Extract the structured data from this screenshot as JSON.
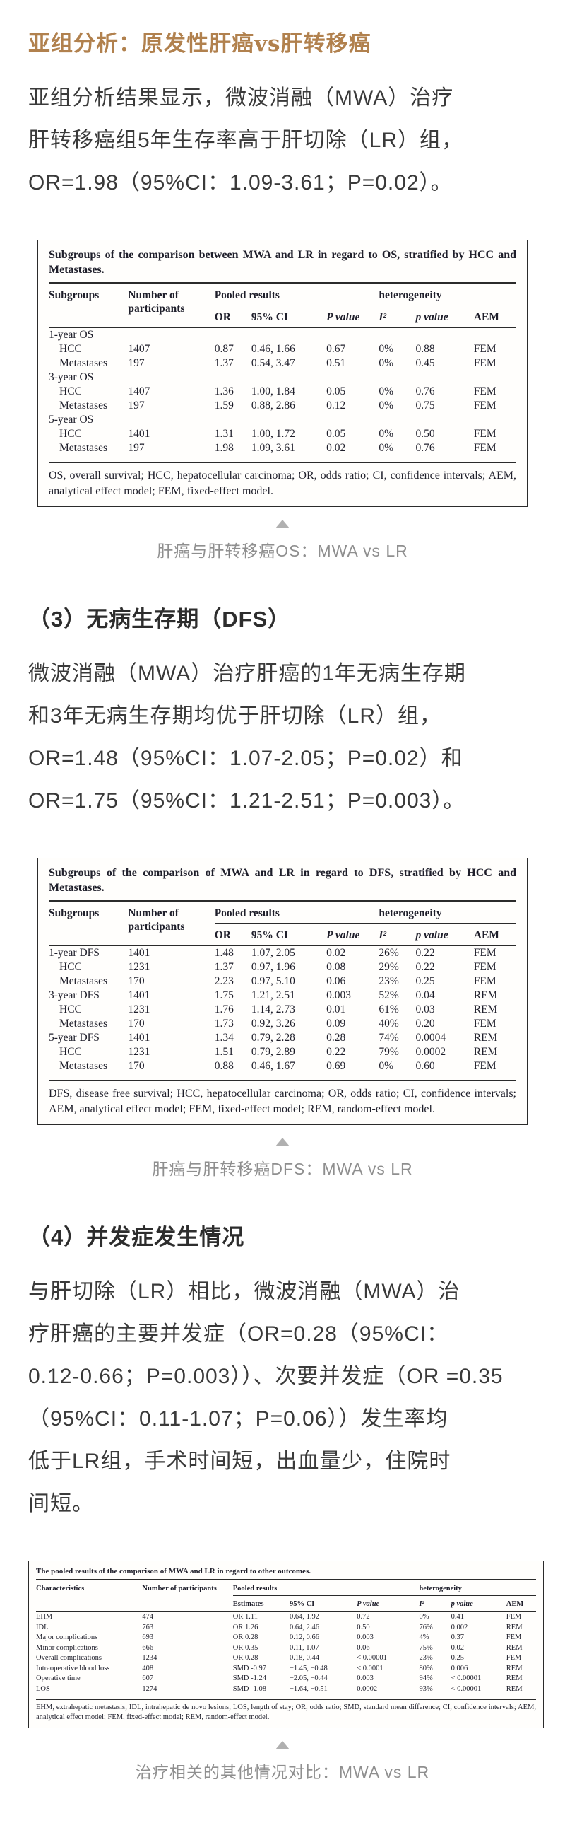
{
  "page": {
    "title": "亚组分析：原发性肝癌vs肝转移癌"
  },
  "colors": {
    "accent": "#b1814e",
    "body_text": "#3a3a3a",
    "caption_gray": "#8f8f8f",
    "table_ink": "#1f1f2b"
  },
  "os_section": {
    "paragraph_lines": [
      "亚组分析结果显示，微波消融（MWA）治疗",
      "肝转移癌组5年生存率高于肝切除（LR）组，",
      "OR=1.98（95%CI：1.09-3.61；P=0.02）。"
    ],
    "caption": "肝癌与肝转移癌OS：MWA vs LR"
  },
  "table_os": {
    "title": "Subgroups of the comparison between MWA and LR in regard to OS, stratified by HCC and Metastases.",
    "headers": {
      "col1": "Subgroups",
      "col2": "Number of participants",
      "pooled": "Pooled results",
      "heterogeneity": "heterogeneity",
      "sub": [
        "OR",
        "95% CI",
        "P value",
        "I²",
        "p value",
        "AEM"
      ]
    },
    "rows": [
      {
        "label": "1-year OS",
        "indent": 0,
        "cells": [
          "",
          "",
          "",
          "",
          "",
          "",
          ""
        ]
      },
      {
        "label": "HCC",
        "indent": 1,
        "cells": [
          "1407",
          "0.87",
          "0.46, 1.66",
          "0.67",
          "0%",
          "0.88",
          "FEM"
        ]
      },
      {
        "label": "Metastases",
        "indent": 1,
        "cells": [
          "197",
          "1.37",
          "0.54, 3.47",
          "0.51",
          "0%",
          "0.45",
          "FEM"
        ]
      },
      {
        "label": "3-year OS",
        "indent": 0,
        "cells": [
          "",
          "",
          "",
          "",
          "",
          "",
          ""
        ]
      },
      {
        "label": "HCC",
        "indent": 1,
        "cells": [
          "1407",
          "1.36",
          "1.00, 1.84",
          "0.05",
          "0%",
          "0.76",
          "FEM"
        ]
      },
      {
        "label": "Metastases",
        "indent": 1,
        "cells": [
          "197",
          "1.59",
          "0.88, 2.86",
          "0.12",
          "0%",
          "0.75",
          "FEM"
        ]
      },
      {
        "label": "5-year OS",
        "indent": 0,
        "cells": [
          "",
          "",
          "",
          "",
          "",
          "",
          ""
        ]
      },
      {
        "label": "HCC",
        "indent": 1,
        "cells": [
          "1401",
          "1.31",
          "1.00, 1.72",
          "0.05",
          "0%",
          "0.50",
          "FEM"
        ]
      },
      {
        "label": "Metastases",
        "indent": 1,
        "cells": [
          "197",
          "1.98",
          "1.09, 3.61",
          "0.02",
          "0%",
          "0.76",
          "FEM"
        ]
      }
    ],
    "footnote": "OS, overall survival; HCC, hepatocellular carcinoma; OR, odds ratio; CI, confidence intervals; AEM, analytical effect model; FEM, fixed-effect model."
  },
  "dfs_section": {
    "heading": "（3）无病生存期（DFS）",
    "paragraph_lines": [
      "微波消融（MWA）治疗肝癌的1年无病生存期",
      "和3年无病生存期均优于肝切除（LR）组，",
      "OR=1.48（95%CI：1.07-2.05；P=0.02）和",
      "OR=1.75（95%CI：1.21-2.51；P=0.003）。"
    ],
    "caption": "肝癌与肝转移癌DFS：MWA vs LR"
  },
  "table_dfs": {
    "title": "Subgroups of the comparison of MWA and LR in regard to DFS, stratified by HCC and Metastases.",
    "headers": {
      "col1": "Subgroups",
      "col2": "Number of participants",
      "pooled": "Pooled results",
      "heterogeneity": "heterogeneity",
      "sub": [
        "OR",
        "95% CI",
        "P value",
        "I²",
        "p value",
        "AEM"
      ]
    },
    "rows": [
      {
        "label": "1-year DFS",
        "indent": 0,
        "cells": [
          "1401",
          "1.48",
          "1.07, 2.05",
          "0.02",
          "26%",
          "0.22",
          "FEM"
        ]
      },
      {
        "label": "HCC",
        "indent": 1,
        "cells": [
          "1231",
          "1.37",
          "0.97, 1.96",
          "0.08",
          "29%",
          "0.22",
          "FEM"
        ]
      },
      {
        "label": "Metastases",
        "indent": 1,
        "cells": [
          "170",
          "2.23",
          "0.97, 5.10",
          "0.06",
          "23%",
          "0.25",
          "FEM"
        ]
      },
      {
        "label": "3-year DFS",
        "indent": 0,
        "cells": [
          "1401",
          "1.75",
          "1.21, 2.51",
          "0.003",
          "52%",
          "0.04",
          "REM"
        ]
      },
      {
        "label": "HCC",
        "indent": 1,
        "cells": [
          "1231",
          "1.76",
          "1.14, 2.73",
          "0.01",
          "61%",
          "0.03",
          "REM"
        ]
      },
      {
        "label": "Metastases",
        "indent": 1,
        "cells": [
          "170",
          "1.73",
          "0.92, 3.26",
          "0.09",
          "40%",
          "0.20",
          "FEM"
        ]
      },
      {
        "label": "5-year DFS",
        "indent": 0,
        "cells": [
          "1401",
          "1.34",
          "0.79, 2.28",
          "0.28",
          "74%",
          "0.0004",
          "REM"
        ]
      },
      {
        "label": "HCC",
        "indent": 1,
        "cells": [
          "1231",
          "1.51",
          "0.79, 2.89",
          "0.22",
          "79%",
          "0.0002",
          "REM"
        ]
      },
      {
        "label": "Metastases",
        "indent": 1,
        "cells": [
          "170",
          "0.88",
          "0.46, 1.67",
          "0.69",
          "0%",
          "0.60",
          "FEM"
        ]
      }
    ],
    "footnote": "DFS, disease free survival; HCC, hepatocellular carcinoma; OR, odds ratio; CI, confidence intervals; AEM, analytical effect model; FEM, fixed-effect model; REM, random-effect model."
  },
  "complications_section": {
    "heading": "（4）并发症发生情况",
    "paragraph_lines": [
      "与肝切除（LR）相比，微波消融（MWA）治",
      "疗肝癌的主要并发症（OR=0.28（95%CI：",
      "0.12-0.66；P=0.003））、次要并发症（OR =0.35",
      "（95%CI：0.11-1.07；P=0.06））发生率均",
      "低于LR组，手术时间短，出血量少，住院时",
      "间短。"
    ],
    "caption": "治疗相关的其他情况对比：MWA vs LR"
  },
  "table_outcomes": {
    "title": "The pooled results of the comparison of MWA and LR in regard to other outcomes.",
    "headers": {
      "col1": "Characteristics",
      "col2": "Number of participants",
      "pooled": "Pooled results",
      "heterogeneity": "heterogeneity",
      "sub": [
        "Estimates",
        "95% CI",
        "P value",
        "I²",
        "p value",
        "AEM"
      ]
    },
    "rows": [
      {
        "label": "EHM",
        "indent": 0,
        "cells": [
          "474",
          "OR 1.11",
          "0.64, 1.92",
          "0.72",
          "0%",
          "0.41",
          "FEM"
        ]
      },
      {
        "label": "IDL",
        "indent": 0,
        "cells": [
          "763",
          "OR 1.26",
          "0.64, 2.46",
          "0.50",
          "76%",
          "0.002",
          "REM"
        ]
      },
      {
        "label": "Major complications",
        "indent": 0,
        "cells": [
          "693",
          "OR 0.28",
          "0.12, 0.66",
          "0.003",
          "4%",
          "0.37",
          "FEM"
        ]
      },
      {
        "label": "Minor complications",
        "indent": 0,
        "cells": [
          "666",
          "OR 0.35",
          "0.11, 1.07",
          "0.06",
          "75%",
          "0.02",
          "REM"
        ]
      },
      {
        "label": "Overall complications",
        "indent": 0,
        "cells": [
          "1234",
          "OR 0.28",
          "0.18, 0.44",
          "< 0.00001",
          "23%",
          "0.25",
          "FEM"
        ]
      },
      {
        "label": "Intraoperative blood loss",
        "indent": 0,
        "cells": [
          "408",
          "SMD -0.97",
          "−1.45, −0.48",
          "< 0.0001",
          "80%",
          "0.006",
          "REM"
        ]
      },
      {
        "label": "Operative time",
        "indent": 0,
        "cells": [
          "607",
          "SMD -1.24",
          "−2.05, −0.44",
          "0.003",
          "94%",
          "< 0.00001",
          "REM"
        ]
      },
      {
        "label": "LOS",
        "indent": 0,
        "cells": [
          "1274",
          "SMD -1.08",
          "−1.64, −0.51",
          "0.0002",
          "93%",
          "< 0.00001",
          "REM"
        ]
      }
    ],
    "footnote": "EHM, extrahepatic metastasis; IDL, intrahepatic de novo lesions; LOS, length of stay; OR, odds ratio; SMD, standard mean difference; CI, confidence intervals; AEM, analytical effect model; FEM, fixed-effect model; REM, random-effect model."
  }
}
